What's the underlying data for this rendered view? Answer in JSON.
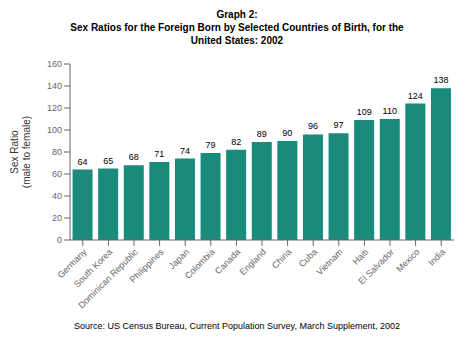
{
  "chart_data": {
    "type": "bar",
    "title": "Graph 2:\nSex Ratios for the Foreign Born by Selected Countries of Birth, for the\nUnited States: 2002",
    "ylabel": "Sex Ratio\n(male to female)",
    "source": "Source: US Census Bureau, Current Population Survey, March Supplement, 2002",
    "categories": [
      "Germany",
      "South Korea",
      "Dominican Republic",
      "Philippines",
      "Japan",
      "Colombia",
      "Canada",
      "England",
      "China",
      "Cuba",
      "Vietnam",
      "Haiti",
      "El Salvador",
      "Mexico",
      "India"
    ],
    "values": [
      64,
      65,
      68,
      71,
      74,
      79,
      82,
      89,
      90,
      96,
      97,
      109,
      110,
      124,
      138
    ],
    "color": "#1a8a7a",
    "ylim": [
      0,
      160
    ],
    "yticks": [
      0,
      20,
      40,
      60,
      80,
      100,
      120,
      140,
      160
    ],
    "grid": false,
    "data_labels": true
  }
}
